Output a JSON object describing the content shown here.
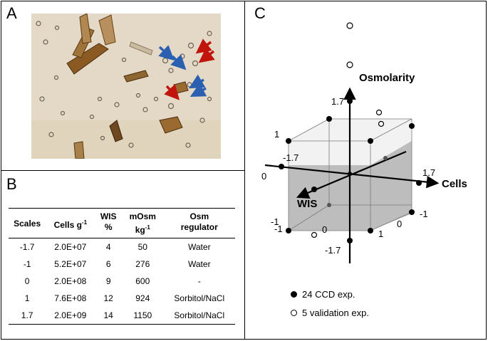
{
  "panels": {
    "a": "A",
    "b": "B",
    "c": "C"
  },
  "table": {
    "headers": [
      "Scales",
      "Cells g",
      "-1",
      "WIS",
      "%",
      "mOsm",
      "kg",
      "-1",
      "Osm",
      "regulator"
    ],
    "rows": [
      [
        "-1.7",
        "2.0E+07",
        "4",
        "50",
        "Water"
      ],
      [
        "-1",
        "5.2E+07",
        "6",
        "276",
        "Water"
      ],
      [
        "0",
        "2.0E+08",
        "9",
        "600",
        "-"
      ],
      [
        "1",
        "7.6E+08",
        "12",
        "924",
        "Sorbitol/NaCl"
      ],
      [
        "1.7",
        "2.0E+09",
        "14",
        "1150",
        "Sorbitol/NaCl"
      ]
    ]
  },
  "diagram": {
    "axis_osmolarity": "Osmolarity",
    "axis_cells": "Cells",
    "axis_wis": "WIS",
    "labels": {
      "osm_top": "1.7",
      "osm_one": "1",
      "osm_zero": "0",
      "osm_neg_one_a": "-1",
      "osm_neg_one_b": "-1",
      "osm_bottom": "-1.7",
      "cells_top": "1.7",
      "cells_neg_one": "-1",
      "cells_zero": "0",
      "wis_neg": "-1.7",
      "wis_zero": "0",
      "wis_one": "1"
    }
  },
  "legend": {
    "filled_label": "24 CCD exp.",
    "open_label": "5 validation exp."
  },
  "colors": {
    "micro_background": "#e3d8c4",
    "red_arrow": "#c0140c",
    "blue_arrow": "#2b5fb0",
    "cube_bottom_fill": "#bdbdbd",
    "cube_top_fill": "#f2f2f2"
  }
}
